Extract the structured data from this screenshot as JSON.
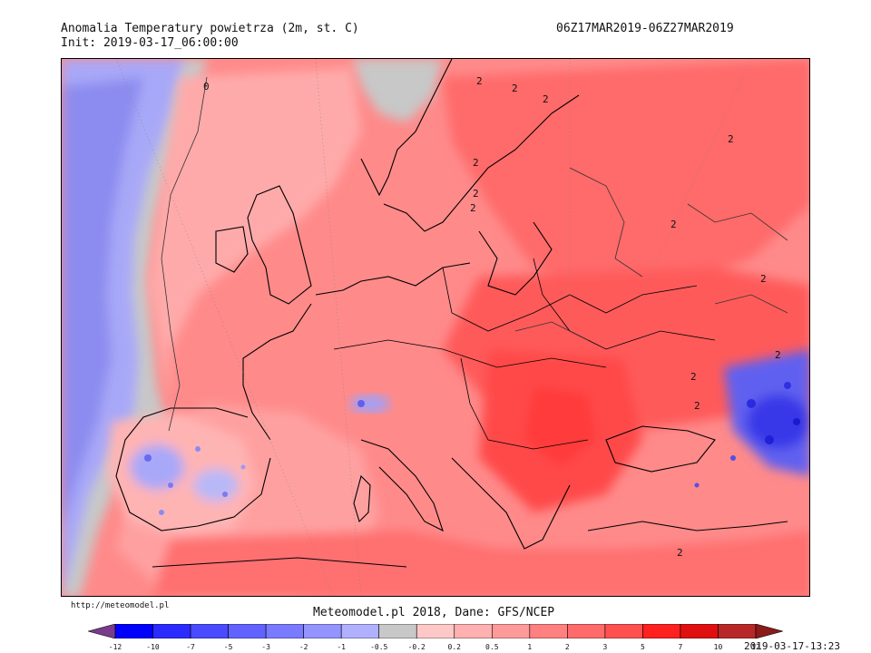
{
  "header": {
    "title": "Anomalia Temperatury powietrza (2m, st. C)",
    "init": "Init: 2019-03-17_06:00:00",
    "period": "06Z17MAR2019-06Z27MAR2019"
  },
  "footer": {
    "url": "http://meteomodel.pl",
    "credit": "Meteomodel.pl 2018, Dane: GFS/NCEP",
    "timestamp": "2019-03-17-13:23"
  },
  "colors": {
    "ocean_neutral": "#c8c8c8",
    "cold_light": "#a8a8f8",
    "cold_mid": "#8080f0",
    "cold_strong": "#5050e8",
    "warm_lightest": "#ffb4b4",
    "warm_light": "#ff9a9a",
    "warm_mid": "#ff8080",
    "warm_strong": "#ff6060",
    "warm_stronger": "#ff4a4a",
    "coastline": "#000000"
  },
  "legend": {
    "labels": [
      "-12",
      "-10",
      "-7",
      "-5",
      "-3",
      "-2",
      "-1",
      "-0.5",
      "-0.2",
      "0.2",
      "0.5",
      "1",
      "2",
      "3",
      "5",
      "7",
      "10",
      "12"
    ],
    "colors": [
      "#7b3b8c",
      "#0000ff",
      "#2b2bff",
      "#4a4aff",
      "#6262ff",
      "#7a7aff",
      "#9494ff",
      "#b0b0ff",
      "#c8c8c8",
      "#ffc8c8",
      "#ffb0b0",
      "#ff9a9a",
      "#ff8080",
      "#ff6a6a",
      "#ff5050",
      "#ff2020",
      "#e01010",
      "#b82828",
      "#8b1a1a"
    ]
  },
  "contour_labels": [
    "0",
    "2",
    "2",
    "2",
    "2",
    "2",
    "2",
    "2",
    "2",
    "2",
    "2",
    "2",
    "2",
    "2"
  ]
}
